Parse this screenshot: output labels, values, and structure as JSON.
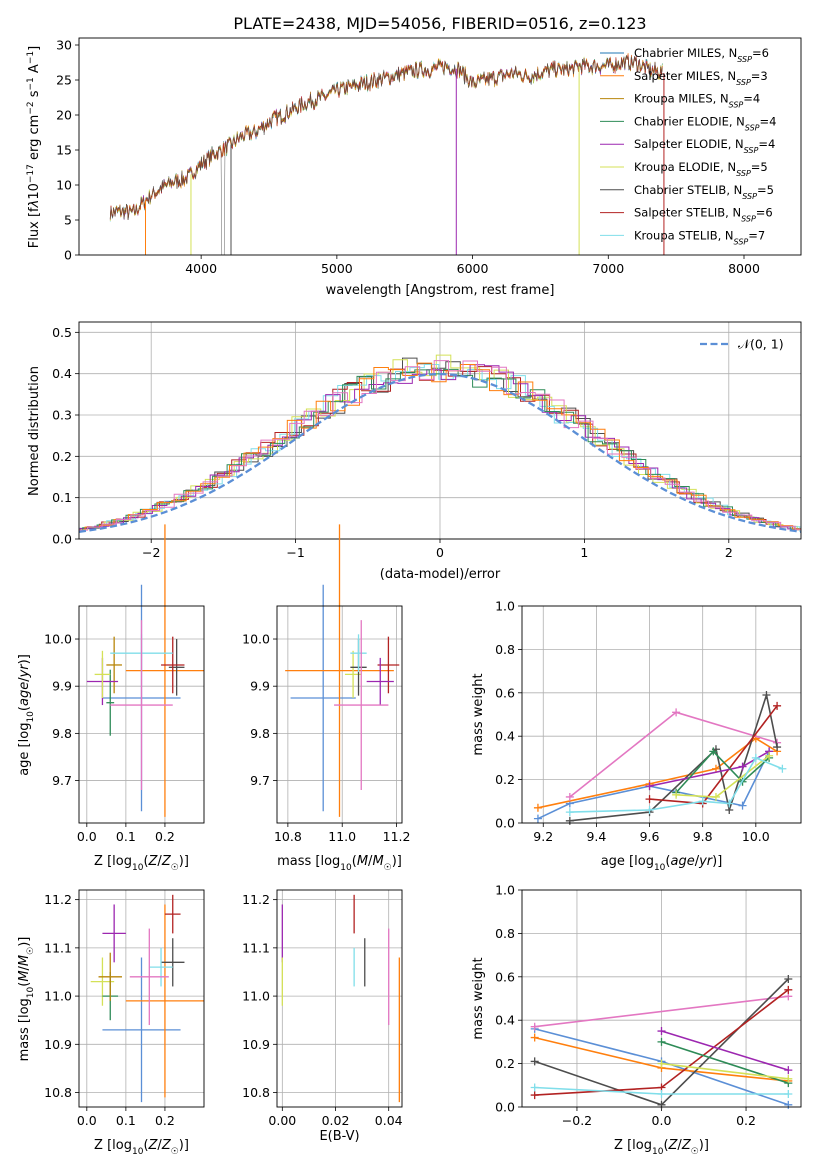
{
  "figure_title": "PLATE=2438, MJD=54056, FIBERID=0516, z=0.123",
  "chart_data": [
    {
      "id": "spectrum",
      "type": "line",
      "title": "PLATE=2438, MJD=54056, FIBERID=0516, z=0.123",
      "xlabel": "wavelength [Angstrom, rest frame]",
      "ylabel": "Flux [fλ10⁻¹⁷ erg cm⁻² s⁻¹ A⁻¹]",
      "xlim": [
        3100,
        8420
      ],
      "ylim": [
        0,
        31
      ],
      "xticks": [
        4000,
        5000,
        6000,
        7000,
        8000
      ],
      "yticks": [
        0,
        5,
        10,
        15,
        20,
        25,
        30
      ],
      "grid": false,
      "legend_position": "top-right",
      "spectrum_envelope": {
        "x": [
          3330,
          3400,
          3500,
          3600,
          3700,
          3800,
          3900,
          4000,
          4100,
          4200,
          4300,
          4400,
          4500,
          4600,
          4700,
          4800,
          4900,
          5000,
          5100,
          5200,
          5300,
          5400,
          5500,
          5600,
          5700,
          5800,
          5900,
          6000,
          6100,
          6200,
          6300,
          6400,
          6500,
          6600,
          6700,
          6800,
          6900,
          7000,
          7100,
          7200,
          7300,
          7400
        ],
        "y": [
          6.0,
          6.2,
          6.0,
          8.0,
          9.5,
          10.5,
          11.0,
          13.0,
          14.5,
          15.5,
          17.0,
          17.5,
          19.0,
          20.0,
          21.0,
          22.0,
          22.5,
          23.5,
          24.0,
          24.5,
          25.0,
          25.5,
          26.0,
          26.5,
          26.5,
          27.0,
          26.5,
          24.5,
          25.0,
          25.5,
          26.0,
          25.5,
          26.0,
          26.5,
          26.5,
          27.0,
          27.0,
          27.0,
          27.5,
          27.5,
          26.5,
          26.0
        ]
      },
      "series": [
        {
          "name": "Chabrier MILES, NSSP=6",
          "label_main": "Chabrier MILES, N",
          "label_sub": "SSP",
          "label_tail": "=6",
          "color": "#1f77b4"
        },
        {
          "name": "Salpeter MILES, NSSP=3",
          "label_main": "Salpeter MILES, N",
          "label_sub": "SSP",
          "label_tail": "=3",
          "color": "#ff7f0e"
        },
        {
          "name": "Kroupa MILES, NSSP=4",
          "label_main": "Kroupa MILES, N",
          "label_sub": "SSP",
          "label_tail": "=4",
          "color": "#b8860b"
        },
        {
          "name": "Chabrier ELODIE, NSSP=4",
          "label_main": "Chabrier ELODIE, N",
          "label_sub": "SSP",
          "label_tail": "=4",
          "color": "#2e8b57"
        },
        {
          "name": "Salpeter ELODIE, NSSP=4",
          "label_main": "Salpeter ELODIE, N",
          "label_sub": "SSP",
          "label_tail": "=4",
          "color": "#9c27b0"
        },
        {
          "name": "Kroupa ELODIE, NSSP=5",
          "label_main": "Kroupa ELODIE, N",
          "label_sub": "SSP",
          "label_tail": "=5",
          "color": "#d4e157"
        },
        {
          "name": "Chabrier STELIB, NSSP=5",
          "label_main": "Chabrier STELIB, N",
          "label_sub": "SSP",
          "label_tail": "=5",
          "color": "#4d4d4d"
        },
        {
          "name": "Salpeter STELIB, NSSP=6",
          "label_main": "Salpeter STELIB, N",
          "label_sub": "SSP",
          "label_tail": "=6",
          "color": "#b22222"
        },
        {
          "name": "Kroupa STELIB, NSSP=7",
          "label_main": "Kroupa STELIB, N",
          "label_sub": "SSP",
          "label_tail": "=7",
          "color": "#80deea"
        }
      ]
    },
    {
      "id": "residuals",
      "type": "histogram",
      "xlabel": "(data-model)/error",
      "ylabel": "Normed distribution",
      "xlim": [
        -2.5,
        2.5
      ],
      "ylim": [
        0,
        0.525
      ],
      "xticks": [
        -2,
        -1,
        0,
        1,
        2
      ],
      "yticks": [
        0.0,
        0.1,
        0.2,
        0.3,
        0.4,
        0.5
      ],
      "grid": true,
      "legend_position": "top-right",
      "reference_curve": {
        "name": "𝒩(0, 1)",
        "mean": 0,
        "sigma": 1,
        "color": "#5b8fd6",
        "style": "dashed"
      },
      "bin_width": 0.1,
      "series_colors": [
        "#4d4d4d",
        "#b22222",
        "#d4e157",
        "#80deea",
        "#9c27b0",
        "#2e8b57",
        "#ff7f0e",
        "#e377c2"
      ]
    },
    {
      "id": "age_vs_Z",
      "type": "errorbar",
      "xlabel": "Z [log10(Z/Z☉)]",
      "ylabel": "age [log10(age/yr)]",
      "xlim": [
        -0.02,
        0.3
      ],
      "ylim": [
        9.61,
        10.07
      ],
      "xticks": [
        0.0,
        0.1,
        0.2
      ],
      "yticks": [
        9.7,
        9.8,
        9.9,
        10.0
      ],
      "grid": true,
      "points": [
        {
          "x": 0.14,
          "xerr": 0.1,
          "y": 9.875,
          "yerr": 0.24,
          "color": "#5b8fd6"
        },
        {
          "x": 0.2,
          "xerr": 0.1,
          "y": 9.933,
          "yerr": 0.31,
          "color": "#ff7f0e"
        },
        {
          "x": 0.07,
          "xerr": 0.02,
          "y": 9.945,
          "yerr": 0.06,
          "color": "#b8860b"
        },
        {
          "x": 0.06,
          "xerr": 0.01,
          "y": 9.865,
          "yerr": 0.07,
          "color": "#2e8b57"
        },
        {
          "x": 0.04,
          "xerr": 0.04,
          "y": 9.91,
          "yerr": 0.05,
          "color": "#9c27b0"
        },
        {
          "x": 0.04,
          "xerr": 0.02,
          "y": 9.925,
          "yerr": 0.05,
          "color": "#d4e157"
        },
        {
          "x": 0.23,
          "xerr": 0.02,
          "y": 9.94,
          "yerr": 0.06,
          "color": "#4d4d4d"
        },
        {
          "x": 0.22,
          "xerr": 0.03,
          "y": 9.945,
          "yerr": 0.06,
          "color": "#b22222"
        },
        {
          "x": 0.14,
          "xerr": 0.08,
          "y": 9.97,
          "yerr": 0.04,
          "color": "#80deea"
        },
        {
          "x": 0.14,
          "xerr": 0.08,
          "y": 9.86,
          "yerr": 0.18,
          "color": "#e377c2"
        }
      ]
    },
    {
      "id": "age_vs_mass",
      "type": "errorbar",
      "xlabel": "mass [log10(M/M☉)]",
      "ylabel": "",
      "xlim": [
        10.76,
        11.22
      ],
      "ylim": [
        9.61,
        10.07
      ],
      "xticks": [
        10.8,
        11.0,
        11.2
      ],
      "yticks": [
        9.7,
        9.8,
        9.9,
        10.0
      ],
      "grid": true,
      "points": [
        {
          "x": 10.93,
          "xerr": 0.12,
          "y": 9.875,
          "yerr": 0.24,
          "color": "#5b8fd6"
        },
        {
          "x": 10.99,
          "xerr": 0.2,
          "y": 9.933,
          "yerr": 0.31,
          "color": "#ff7f0e"
        },
        {
          "x": 11.04,
          "xerr": 0.03,
          "y": 9.925,
          "yerr": 0.05,
          "color": "#d4e157"
        },
        {
          "x": 11.06,
          "xerr": 0.03,
          "y": 9.94,
          "yerr": 0.06,
          "color": "#4d4d4d"
        },
        {
          "x": 11.17,
          "xerr": 0.04,
          "y": 9.945,
          "yerr": 0.06,
          "color": "#b22222"
        },
        {
          "x": 11.14,
          "xerr": 0.05,
          "y": 9.91,
          "yerr": 0.05,
          "color": "#9c27b0"
        },
        {
          "x": 11.06,
          "xerr": 0.03,
          "y": 9.97,
          "yerr": 0.04,
          "color": "#80deea"
        },
        {
          "x": 11.07,
          "xerr": 0.1,
          "y": 9.86,
          "yerr": 0.18,
          "color": "#e377c2"
        }
      ]
    },
    {
      "id": "weight_vs_age",
      "type": "line",
      "xlabel": "age [log10(age/yr)]",
      "ylabel": "mass weight",
      "xlim": [
        9.12,
        10.17
      ],
      "ylim": [
        0.0,
        1.0
      ],
      "xticks": [
        9.2,
        9.4,
        9.6,
        9.8,
        10.0
      ],
      "yticks": [
        0.0,
        0.2,
        0.4,
        0.6,
        0.8,
        1.0
      ],
      "grid": true,
      "series": [
        {
          "color": "#5b8fd6",
          "x": [
            9.18,
            9.3,
            9.6,
            9.95,
            10.05
          ],
          "y": [
            0.02,
            0.09,
            0.17,
            0.08,
            0.33
          ]
        },
        {
          "color": "#ff7f0e",
          "x": [
            9.18,
            9.6,
            9.85,
            10.0,
            10.08
          ],
          "y": [
            0.07,
            0.18,
            0.25,
            0.39,
            0.33
          ]
        },
        {
          "color": "#e377c2",
          "x": [
            9.3,
            9.7,
            10.08
          ],
          "y": [
            0.12,
            0.51,
            0.37
          ]
        },
        {
          "color": "#4d4d4d",
          "x": [
            9.3,
            9.6,
            9.85,
            9.9,
            10.04,
            10.08
          ],
          "y": [
            0.01,
            0.05,
            0.34,
            0.06,
            0.59,
            0.35
          ]
        },
        {
          "color": "#b22222",
          "x": [
            9.6,
            9.8,
            10.08
          ],
          "y": [
            0.11,
            0.09,
            0.54
          ]
        },
        {
          "color": "#9c27b0",
          "x": [
            9.6,
            9.95,
            10.05
          ],
          "y": [
            0.17,
            0.26,
            0.33
          ]
        },
        {
          "color": "#2e8b57",
          "x": [
            9.7,
            9.84,
            9.95,
            10.05
          ],
          "y": [
            0.14,
            0.33,
            0.19,
            0.3
          ]
        },
        {
          "color": "#d4e157",
          "x": [
            9.7,
            9.85,
            10.05
          ],
          "y": [
            0.13,
            0.12,
            0.31
          ]
        },
        {
          "color": "#80deea",
          "x": [
            9.3,
            9.6,
            9.8,
            9.9,
            10.0,
            10.1
          ],
          "y": [
            0.05,
            0.06,
            0.1,
            0.09,
            0.3,
            0.25
          ]
        }
      ]
    },
    {
      "id": "mass_vs_Z",
      "type": "errorbar",
      "xlabel": "Z [log10(Z/Z☉)]",
      "ylabel": "mass [log10(M/M☉)]",
      "xlim": [
        -0.02,
        0.3
      ],
      "ylim": [
        10.77,
        11.22
      ],
      "xticks": [
        0.0,
        0.1,
        0.2
      ],
      "yticks": [
        10.8,
        10.9,
        11.0,
        11.1,
        11.2
      ],
      "grid": true,
      "points": [
        {
          "x": 0.14,
          "xerr": 0.1,
          "y": 10.93,
          "yerr": 0.15,
          "color": "#5b8fd6"
        },
        {
          "x": 0.2,
          "xerr": 0.1,
          "y": 10.99,
          "yerr": 0.2,
          "color": "#ff7f0e"
        },
        {
          "x": 0.07,
          "xerr": 0.03,
          "y": 11.13,
          "yerr": 0.06,
          "color": "#9c27b0"
        },
        {
          "x": 0.04,
          "xerr": 0.03,
          "y": 11.03,
          "yerr": 0.05,
          "color": "#d4e157"
        },
        {
          "x": 0.06,
          "xerr": 0.02,
          "y": 11.0,
          "yerr": 0.05,
          "color": "#2e8b57"
        },
        {
          "x": 0.22,
          "xerr": 0.02,
          "y": 11.17,
          "yerr": 0.04,
          "color": "#b22222"
        },
        {
          "x": 0.22,
          "xerr": 0.03,
          "y": 11.07,
          "yerr": 0.05,
          "color": "#4d4d4d"
        },
        {
          "x": 0.19,
          "xerr": 0.03,
          "y": 11.06,
          "yerr": 0.04,
          "color": "#80deea"
        },
        {
          "x": 0.16,
          "xerr": 0.05,
          "y": 11.04,
          "yerr": 0.1,
          "color": "#e377c2"
        },
        {
          "x": 0.06,
          "xerr": 0.03,
          "y": 11.04,
          "yerr": 0.05,
          "color": "#b8860b"
        }
      ]
    },
    {
      "id": "mass_vs_EBV",
      "type": "errorbar",
      "xlabel": "E(B-V)",
      "ylabel": "",
      "xlim": [
        -0.002,
        0.045
      ],
      "ylim": [
        10.77,
        11.22
      ],
      "xticks": [
        0.0,
        0.02,
        0.04
      ],
      "yticks": [
        10.8,
        10.9,
        11.0,
        11.1,
        11.2
      ],
      "grid": true,
      "points": [
        {
          "x": 0.0,
          "y": 11.13,
          "yerr": 0.06,
          "color": "#9c27b0"
        },
        {
          "x": 0.0,
          "y": 11.03,
          "yerr": 0.05,
          "color": "#d4e157"
        },
        {
          "x": 0.027,
          "y": 11.17,
          "yerr": 0.04,
          "color": "#b22222"
        },
        {
          "x": 0.027,
          "y": 11.06,
          "yerr": 0.04,
          "color": "#80deea"
        },
        {
          "x": 0.031,
          "y": 11.07,
          "yerr": 0.05,
          "color": "#4d4d4d"
        },
        {
          "x": 0.04,
          "y": 11.04,
          "yerr": 0.1,
          "color": "#e377c2"
        },
        {
          "x": 0.044,
          "y": 10.93,
          "yerr": 0.15,
          "color": "#ff7f0e"
        }
      ]
    },
    {
      "id": "weight_vs_Z",
      "type": "line",
      "xlabel": "Z [log10(Z/Z☉)]",
      "ylabel": "mass weight",
      "xlim": [
        -0.33,
        0.33
      ],
      "ylim": [
        0.0,
        1.0
      ],
      "xticks": [
        -0.2,
        0.0,
        0.2
      ],
      "yticks": [
        0.0,
        0.2,
        0.4,
        0.6,
        0.8,
        1.0
      ],
      "grid": true,
      "series": [
        {
          "color": "#5b8fd6",
          "x": [
            -0.3,
            0.0,
            0.3
          ],
          "y": [
            0.36,
            0.21,
            0.01
          ]
        },
        {
          "color": "#ff7f0e",
          "x": [
            -0.3,
            0.0,
            0.3
          ],
          "y": [
            0.32,
            0.18,
            0.12
          ]
        },
        {
          "color": "#e377c2",
          "x": [
            -0.3,
            0.3
          ],
          "y": [
            0.37,
            0.51
          ]
        },
        {
          "color": "#4d4d4d",
          "x": [
            -0.3,
            0.0,
            0.3
          ],
          "y": [
            0.21,
            0.01,
            0.59
          ]
        },
        {
          "color": "#b22222",
          "x": [
            -0.3,
            0.0,
            0.3
          ],
          "y": [
            0.055,
            0.09,
            0.54
          ]
        },
        {
          "color": "#9c27b0",
          "x": [
            0.0,
            0.3
          ],
          "y": [
            0.35,
            0.17
          ]
        },
        {
          "color": "#2e8b57",
          "x": [
            0.0,
            0.3
          ],
          "y": [
            0.3,
            0.11
          ]
        },
        {
          "color": "#d4e157",
          "x": [
            0.0,
            0.3
          ],
          "y": [
            0.2,
            0.13
          ]
        },
        {
          "color": "#80deea",
          "x": [
            -0.3,
            0.0,
            0.3
          ],
          "y": [
            0.09,
            0.06,
            0.06
          ]
        }
      ]
    }
  ]
}
